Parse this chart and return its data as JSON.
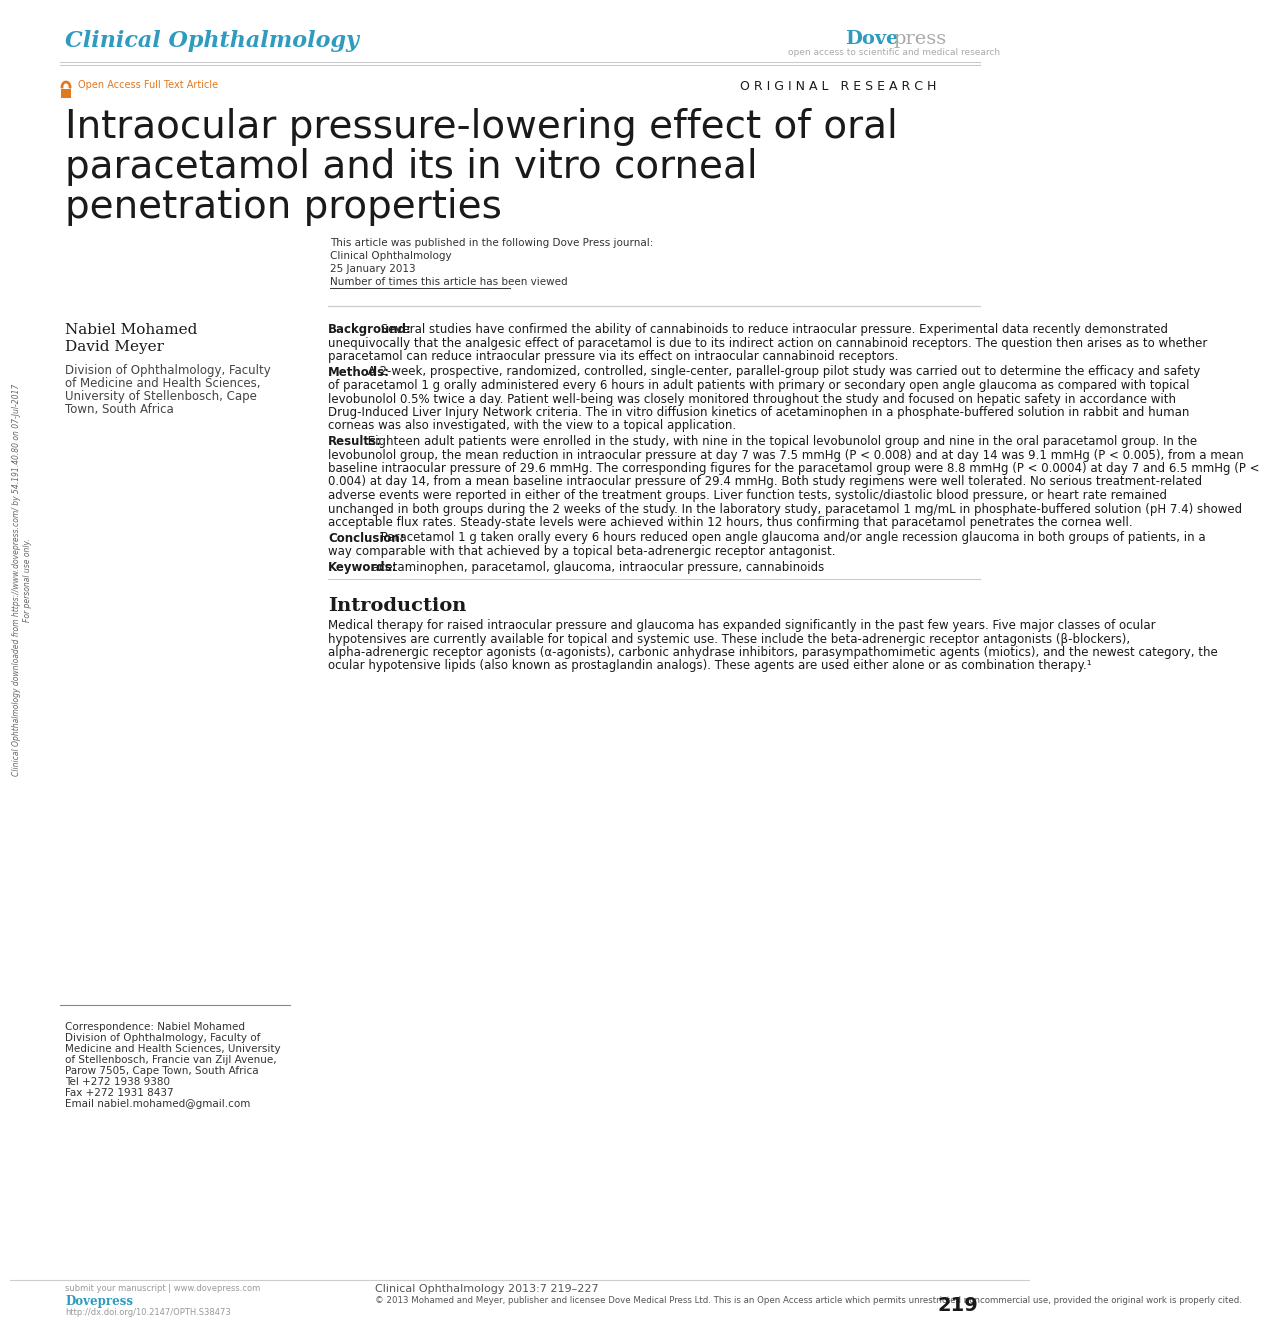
{
  "background_color": "#ffffff",
  "header_journal_title": "Clinical Ophthalmology",
  "header_journal_color": "#2e9bbf",
  "header_dove_text1": "Dove",
  "header_dove_text2": "press",
  "header_dove_color1": "#2e9bbf",
  "header_dove_color2": "#aaaaaa",
  "header_subtitle": "open access to scientific and medical research",
  "header_subtitle_color": "#aaaaaa",
  "open_access_text": "Open Access Full Text Article",
  "open_access_color": "#e07820",
  "original_research_text": "O R I G I N A L   R E S E A R C H",
  "article_title_line1": "Intraocular pressure-lowering effect of oral",
  "article_title_line2": "paracetamol and its in vitro corneal",
  "article_title_line3": "penetration properties",
  "article_title_color": "#1a1a1a",
  "side_watermark": "Clinical Ophthalmology downloaded from https://www.dovepress.com/ by 54.191.40.80 on 07-Jul-2017\nFor personal use only.",
  "dove_press_line1": "This article was published in the following Dove Press journal:",
  "dove_press_line2": "Clinical Ophthalmology",
  "dove_press_line3": "25 January 2013",
  "dove_press_line4": "Number of times this article has been viewed",
  "authors_line1": "Nabiel Mohamed",
  "authors_line2": "David Meyer",
  "affiliation": "Division of Ophthalmology, Faculty\nof Medicine and Health Sciences,\nUniversity of Stellenbosch, Cape\nTown, South Africa",
  "abstract_background_label": "Background:",
  "abstract_background_text": " Several studies have confirmed the ability of cannabinoids to reduce intraocular pressure. Experimental data recently demonstrated unequivocally that the analgesic effect of paracetamol is due to its indirect action on cannabinoid receptors. The question then arises as to whether paracetamol can reduce intraocular pressure via its effect on intraocular cannabinoid receptors.",
  "abstract_methods_label": "Methods:",
  "abstract_methods_text": " A 2-week, prospective, randomized, controlled, single-center, parallel-group pilot study was carried out to determine the efficacy and safety of paracetamol 1 g orally administered every 6 hours in adult patients with primary or secondary open angle glaucoma as compared with topical levobunolol 0.5% twice a day. Patient well-being was closely monitored throughout the study and focused on hepatic safety in accordance with Drug-Induced Liver Injury Network criteria. The in vitro diffusion kinetics of acetaminophen in a phosphate-buffered solution in rabbit and human corneas was also investigated, with the view to a topical application.",
  "abstract_results_label": "Results:",
  "abstract_results_text": " Eighteen adult patients were enrolled in the study, with nine in the topical levobunolol group and nine in the oral paracetamol group. In the levobunolol group, the mean reduction in intraocular pressure at day 7 was 7.5 mmHg (P < 0.008) and at day 14 was 9.1 mmHg (P < 0.005), from a mean baseline intraocular pressure of 29.6 mmHg. The corresponding figures for the paracetamol group were 8.8 mmHg (P < 0.0004) at day 7 and 6.5 mmHg (P < 0.004) at day 14, from a mean baseline intraocular pressure of 29.4 mmHg. Both study regimens were well tolerated. No serious treatment-related adverse events were reported in either of the treatment groups. Liver function tests, systolic/diastolic blood pressure, or heart rate remained unchanged in both groups during the 2 weeks of the study. In the laboratory study, paracetamol 1 mg/mL in phosphate-buffered solution (pH 7.4) showed acceptable flux rates. Steady-state levels were achieved within 12 hours, thus confirming that paracetamol penetrates the cornea well.",
  "abstract_conclusion_label": "Conclusion:",
  "abstract_conclusion_text": " Paracetamol 1 g taken orally every 6 hours reduced open angle glaucoma and/or angle recession glaucoma in both groups of patients, in a way comparable with that achieved by a topical beta-adrenergic receptor antagonist.",
  "abstract_keywords_label": "Keywords:",
  "abstract_keywords_text": " acetaminophen, paracetamol, glaucoma, intraocular pressure, cannabinoids",
  "intro_title": "Introduction",
  "intro_text": "Medical therapy for raised intraocular pressure and glaucoma has expanded significantly in the past few years. Five major classes of ocular hypotensives are currently available for topical and systemic use. These include the beta-adrenergic receptor antagonists (β-blockers), alpha-adrenergic receptor agonists (α-agonists), carbonic anhydrase inhibitors, parasympathomimetic agents (miotics), and the newest category, the ocular hypotensive lipids (also known as prostaglandin analogs). These agents are used either alone or as combination therapy.¹",
  "correspondence_text": "Correspondence: Nabiel Mohamed\nDivision of Ophthalmology, Faculty of\nMedicine and Health Sciences, University\nof Stellenbosch, Francie van Zijl Avenue,\nParow 7505, Cape Town, South Africa\nTel +272 1938 9380\nFax +272 1931 8437\nEmail nabiel.mohamed@gmail.com",
  "footer_left1": "submit your manuscript | www.dovepress.com",
  "footer_left2": "Dovepress",
  "footer_left3": "http://dx.doi.org/10.2147/OPTH.S38473",
  "footer_center": "Clinical Ophthalmology 2013:7 219–227",
  "footer_copyright": "© 2013 Mohamed and Meyer, publisher and licensee Dove Medical Press Ltd. This is an Open Access article which permits unrestricted noncommercial use, provided the original work is properly cited.",
  "footer_page": "219",
  "separator_color": "#cccccc",
  "text_color": "#1a1a1a"
}
